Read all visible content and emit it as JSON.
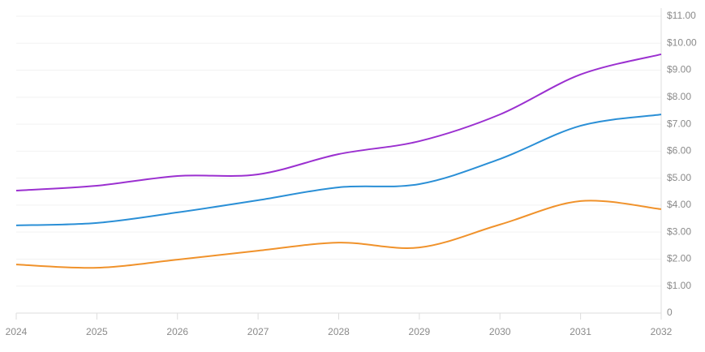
{
  "chart_data": {
    "type": "line",
    "x": [
      2024,
      2025,
      2026,
      2027,
      2028,
      2029,
      2030,
      2031,
      2032
    ],
    "xlim": [
      2024,
      2032
    ],
    "xticks": [
      2024,
      2025,
      2026,
      2027,
      2028,
      2029,
      2030,
      2031,
      2032
    ],
    "ylim": [
      0,
      11
    ],
    "yticks": [
      0,
      {
        "value": 1,
        "label": "$1.00"
      },
      {
        "value": 2,
        "label": "$2.00"
      },
      {
        "value": 3,
        "label": "$3.00"
      },
      {
        "value": 4,
        "label": "$4.00"
      },
      {
        "value": 5,
        "label": "$5.00"
      },
      {
        "value": 6,
        "label": "$6.00"
      },
      {
        "value": 7,
        "label": "$7.00"
      },
      {
        "value": 8,
        "label": "$8.00"
      },
      {
        "value": 9,
        "label": "$9.00"
      },
      {
        "value": 10,
        "label": "$10.00"
      },
      {
        "value": 11,
        "label": "$11.00"
      }
    ],
    "grid": true,
    "series": [
      {
        "color": "#9b30d0",
        "values": [
          4.54,
          4.72,
          5.08,
          5.14,
          5.89,
          6.37,
          7.36,
          8.84,
          9.59
        ]
      },
      {
        "color": "#2a8fd6",
        "values": [
          3.25,
          3.34,
          3.73,
          4.18,
          4.66,
          4.78,
          5.71,
          6.94,
          7.36
        ]
      },
      {
        "color": "#f0922b",
        "values": [
          1.8,
          1.68,
          1.98,
          2.31,
          2.61,
          2.43,
          3.28,
          4.15,
          3.85
        ]
      }
    ]
  }
}
